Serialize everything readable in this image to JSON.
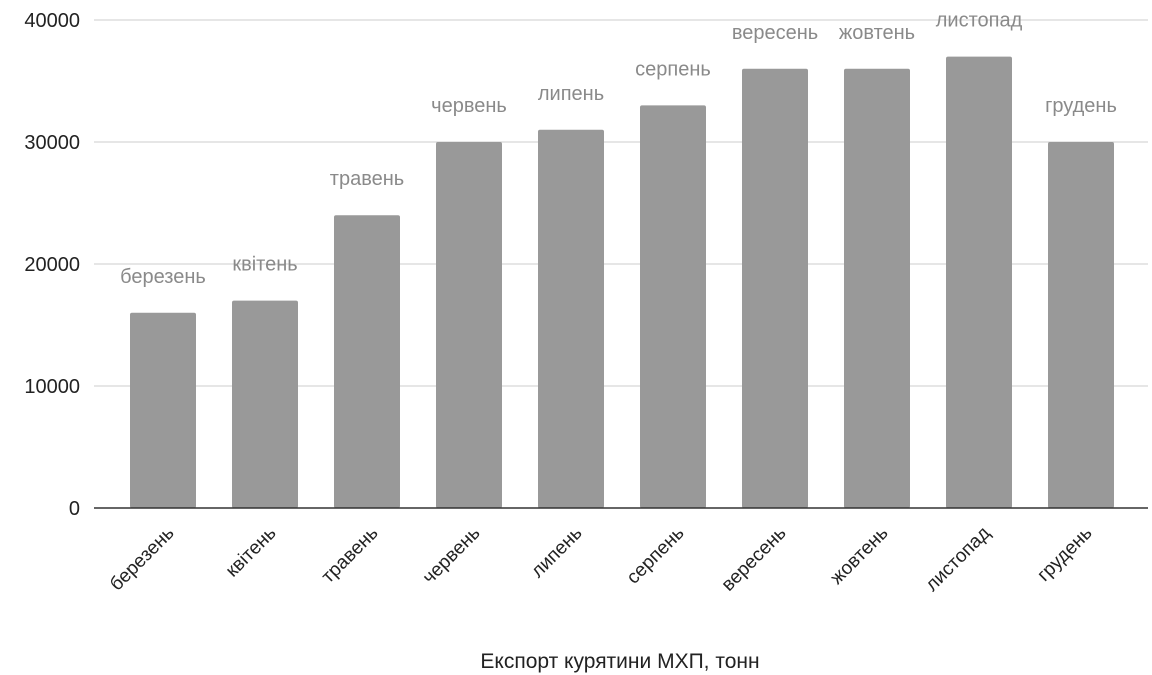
{
  "chart_data": {
    "type": "bar",
    "title": "",
    "xlabel": "Експорт курятини МХП, тонн",
    "ylabel": "",
    "ylim": [
      0,
      40000
    ],
    "yticks": [
      0,
      10000,
      20000,
      30000,
      40000
    ],
    "grid": true,
    "legend": "none",
    "categories": [
      "березень",
      "квітень",
      "травень",
      "червень",
      "липень",
      "серпень",
      "вересень",
      "жовтень",
      "листопад",
      "грудень"
    ],
    "values": [
      16000,
      17000,
      24000,
      30000,
      31000,
      33000,
      36000,
      36000,
      37000,
      30000
    ],
    "data_labels": [
      "березень",
      "квітень",
      "травень",
      "червень",
      "липень",
      "серпень",
      "вересень",
      "жовтень",
      "листопад",
      "грудень"
    ],
    "colors": {
      "bar": "#999999",
      "grid": "#cccccc",
      "axis": "#333333",
      "data_label": "#8a8a8a",
      "text": "#222222"
    }
  }
}
